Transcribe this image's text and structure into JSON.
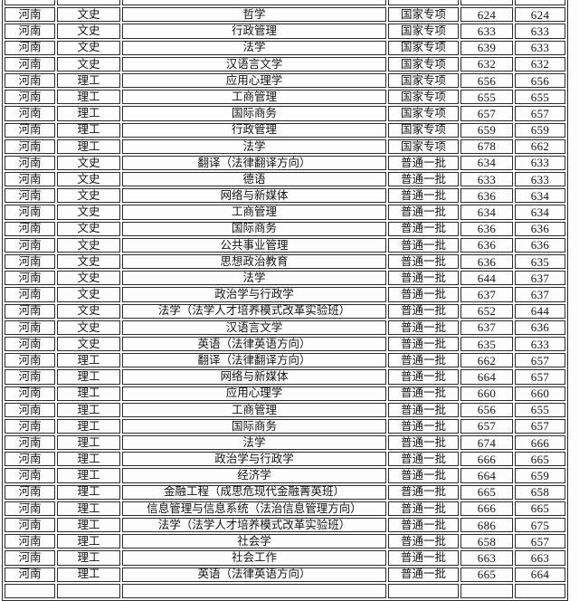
{
  "page": {
    "background": "#fdfdfd",
    "border_color": "#2b2b2b",
    "text_color": "#141414"
  },
  "table": {
    "name": "admission-scores-table",
    "columns": [
      "province",
      "subject_type",
      "major",
      "batch",
      "score1",
      "score2"
    ],
    "partial_top_row": [
      "",
      "",
      "",
      "",
      "",
      ""
    ],
    "rows": [
      [
        "河南",
        "文史",
        "哲学",
        "国家专项",
        "624",
        "624"
      ],
      [
        "河南",
        "文史",
        "行政管理",
        "国家专项",
        "633",
        "633"
      ],
      [
        "河南",
        "文史",
        "法学",
        "国家专项",
        "639",
        "633"
      ],
      [
        "河南",
        "文史",
        "汉语言文学",
        "国家专项",
        "632",
        "632"
      ],
      [
        "河南",
        "理工",
        "应用心理学",
        "国家专项",
        "656",
        "656"
      ],
      [
        "河南",
        "理工",
        "工商管理",
        "国家专项",
        "655",
        "655"
      ],
      [
        "河南",
        "理工",
        "国际商务",
        "国家专项",
        "657",
        "657"
      ],
      [
        "河南",
        "理工",
        "行政管理",
        "国家专项",
        "659",
        "659"
      ],
      [
        "河南",
        "理工",
        "法学",
        "国家专项",
        "678",
        "662"
      ],
      [
        "河南",
        "文史",
        "翻译（法律翻译方向）",
        "普通一批",
        "634",
        "633"
      ],
      [
        "河南",
        "文史",
        "德语",
        "普通一批",
        "633",
        "633"
      ],
      [
        "河南",
        "文史",
        "网络与新媒体",
        "普通一批",
        "636",
        "634"
      ],
      [
        "河南",
        "文史",
        "工商管理",
        "普通一批",
        "634",
        "634"
      ],
      [
        "河南",
        "文史",
        "国际商务",
        "普通一批",
        "636",
        "636"
      ],
      [
        "河南",
        "文史",
        "公共事业管理",
        "普通一批",
        "636",
        "636"
      ],
      [
        "河南",
        "文史",
        "思想政治教育",
        "普通一批",
        "636",
        "635"
      ],
      [
        "河南",
        "文史",
        "法学",
        "普通一批",
        "644",
        "637"
      ],
      [
        "河南",
        "文史",
        "政治学与行政学",
        "普通一批",
        "637",
        "637"
      ],
      [
        "河南",
        "文史",
        "法学（法学人才培养模式改革实验班）",
        "普通一批",
        "652",
        "644"
      ],
      [
        "河南",
        "文史",
        "汉语言文学",
        "普通一批",
        "637",
        "636"
      ],
      [
        "河南",
        "文史",
        "英语（法律英语方向）",
        "普通一批",
        "635",
        "633"
      ],
      [
        "河南",
        "理工",
        "翻译（法律翻译方向）",
        "普通一批",
        "662",
        "657"
      ],
      [
        "河南",
        "理工",
        "网络与新媒体",
        "普通一批",
        "664",
        "657"
      ],
      [
        "河南",
        "理工",
        "应用心理学",
        "普通一批",
        "660",
        "660"
      ],
      [
        "河南",
        "理工",
        "工商管理",
        "普通一批",
        "656",
        "655"
      ],
      [
        "河南",
        "理工",
        "国际商务",
        "普通一批",
        "657",
        "657"
      ],
      [
        "河南",
        "理工",
        "法学",
        "普通一批",
        "674",
        "666"
      ],
      [
        "河南",
        "理工",
        "政治学与行政学",
        "普通一批",
        "666",
        "665"
      ],
      [
        "河南",
        "理工",
        "经济学",
        "普通一批",
        "664",
        "659"
      ],
      [
        "河南",
        "理工",
        "金融工程（成思危现代金融菁英班）",
        "普通一批",
        "665",
        "658"
      ],
      [
        "河南",
        "理工",
        "信息管理与信息系统（法治信息管理方向）",
        "普通一批",
        "666",
        "665"
      ],
      [
        "河南",
        "理工",
        "法学（法学人才培养模式改革实验班）",
        "普通一批",
        "686",
        "675"
      ],
      [
        "河南",
        "理工",
        "社会学",
        "普通一批",
        "658",
        "657"
      ],
      [
        "河南",
        "理工",
        "社会工作",
        "普通一批",
        "663",
        "663"
      ],
      [
        "河南",
        "理工",
        "英语（法律英语方向）",
        "普通一批",
        "665",
        "664"
      ]
    ],
    "partial_bottom_row": [
      "",
      "",
      "",
      "",
      "",
      ""
    ]
  }
}
